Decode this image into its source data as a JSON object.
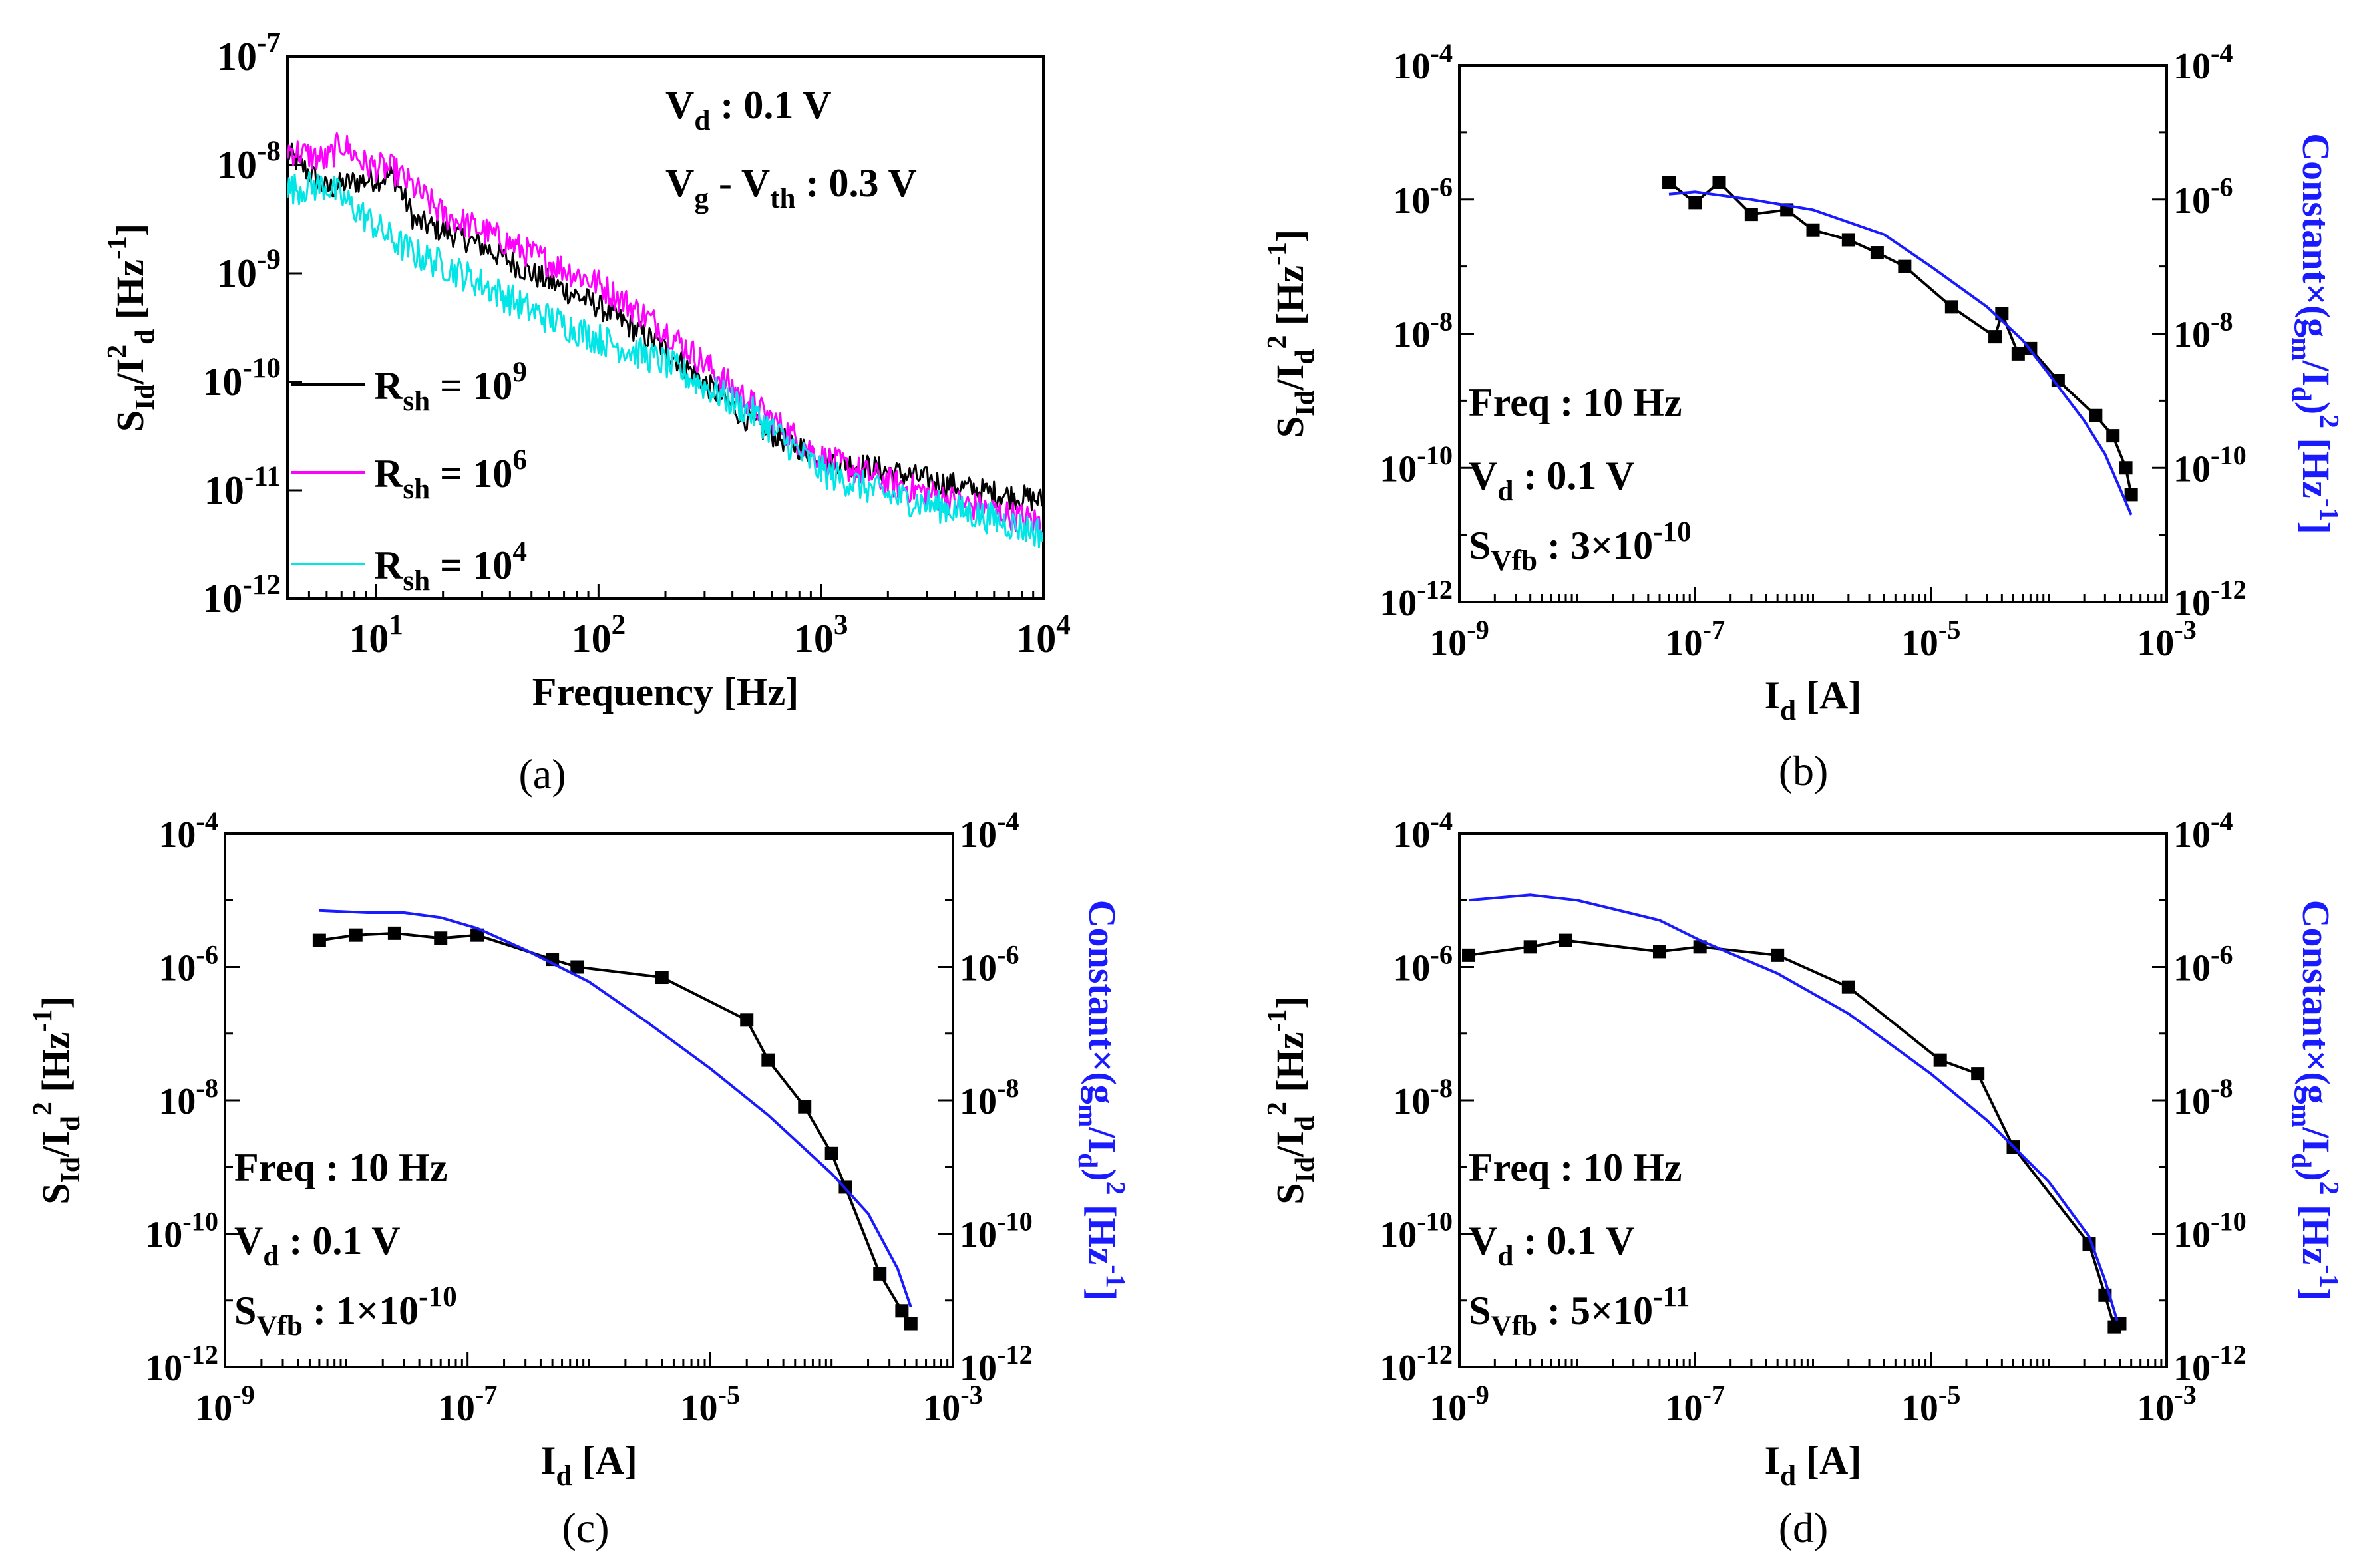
{
  "figure_captions": [
    "(a)",
    "(b)",
    "(c)",
    "(d)"
  ],
  "colors": {
    "black_series": "#000000",
    "magenta_series": "#ff00ff",
    "cyan_series": "#00e5e5",
    "blue_axis": "#1a1aff"
  },
  "chart_data": [
    {
      "id": "a",
      "type": "line",
      "caption": "(a)",
      "xscale": "log",
      "yscale": "log",
      "xlim": [
        4,
        10000
      ],
      "ylim": [
        1e-12,
        1e-07
      ],
      "xticks": [
        {
          "v": 10,
          "base": "10",
          "exp": "1"
        },
        {
          "v": 100,
          "base": "10",
          "exp": "2"
        },
        {
          "v": 1000,
          "base": "10",
          "exp": "3"
        },
        {
          "v": 10000,
          "base": "10",
          "exp": "4"
        }
      ],
      "yticks": [
        {
          "v": 1e-07,
          "base": "10",
          "exp": "-7"
        },
        {
          "v": 1e-08,
          "base": "10",
          "exp": "-8"
        },
        {
          "v": 1e-09,
          "base": "10",
          "exp": "-9"
        },
        {
          "v": 1e-10,
          "base": "10",
          "exp": "-10"
        },
        {
          "v": 1e-11,
          "base": "10",
          "exp": "-11"
        },
        {
          "v": 1e-12,
          "base": "10",
          "exp": "-12"
        }
      ],
      "xlabel": {
        "main": "Frequency [Hz]"
      },
      "ylabel": {
        "S": "S",
        "sub1": "Id",
        "mid": "/I",
        "sup2": "2",
        "sub2": "d",
        "tail": " [Hz",
        "sup3": "-1",
        "end": "]"
      },
      "annotations": [
        {
          "main": "V",
          "sub": "d",
          "rest": " : 0.1 V"
        },
        {
          "main": "V",
          "sub": "g",
          "rest": " - V",
          "sub2": "th",
          "rest2": " : 0.3 V"
        }
      ],
      "legend": {
        "position": "bottom-left",
        "entries": [
          {
            "main": "R",
            "sub": "sh",
            "eq": " = 10",
            "sup": "9",
            "color": "#000000"
          },
          {
            "main": "R",
            "sub": "sh",
            "eq": " = 10",
            "sup": "6",
            "color": "#ff00ff"
          },
          {
            "main": "R",
            "sub": "sh",
            "eq": " = 10",
            "sup": "4",
            "color": "#00e5e5"
          }
        ]
      },
      "series": [
        {
          "name": "Rsh = 10^9",
          "color": "#000000",
          "x": [
            4,
            6,
            8,
            12,
            15,
            20,
            30,
            50,
            100,
            200,
            500,
            1000,
            2000,
            5000,
            10000
          ],
          "y": [
            1.3e-08,
            6e-09,
            7e-09,
            8e-09,
            3e-09,
            2.5e-09,
            1.8e-09,
            1e-09,
            5e-10,
            2e-10,
            4e-11,
            2e-11,
            1.5e-11,
            1e-11,
            8e-12
          ],
          "noise": 0.12
        },
        {
          "name": "Rsh = 10^6",
          "color": "#ff00ff",
          "x": [
            4,
            6,
            7,
            9,
            12,
            15,
            20,
            30,
            50,
            100,
            200,
            500,
            1000,
            2000,
            5000,
            10000
          ],
          "y": [
            1.4e-08,
            1.1e-08,
            1.6e-08,
            1e-08,
            9e-09,
            6e-09,
            3.5e-09,
            2.5e-09,
            1.5e-09,
            8e-10,
            3e-10,
            6e-11,
            2e-11,
            1.2e-11,
            7e-12,
            5e-12
          ],
          "noise": 0.14
        },
        {
          "name": "Rsh = 10^4",
          "color": "#00e5e5",
          "x": [
            4,
            6,
            8,
            12,
            15,
            20,
            30,
            50,
            100,
            200,
            500,
            1000,
            2000,
            5000,
            10000
          ],
          "y": [
            6e-09,
            6.5e-09,
            4e-09,
            2e-09,
            1.5e-09,
            1.2e-09,
            8e-10,
            4.5e-10,
            2.5e-10,
            1.5e-10,
            5e-11,
            1.5e-11,
            9e-12,
            6e-12,
            4e-12
          ],
          "noise": 0.15
        }
      ]
    },
    {
      "id": "b",
      "type": "line",
      "caption": "(b)",
      "xscale": "log",
      "yscale": "log",
      "xlim": [
        1e-09,
        0.001
      ],
      "ylim": [
        1e-12,
        0.0001
      ],
      "xticks": [
        {
          "v": 1e-09,
          "base": "10",
          "exp": "-9"
        },
        {
          "v": 1e-07,
          "base": "10",
          "exp": "-7"
        },
        {
          "v": 1e-05,
          "base": "10",
          "exp": "-5"
        },
        {
          "v": 0.001,
          "base": "10",
          "exp": "-3"
        }
      ],
      "yticks": [
        {
          "v": 0.0001,
          "base": "10",
          "exp": "-4"
        },
        {
          "v": 1e-06,
          "base": "10",
          "exp": "-6"
        },
        {
          "v": 1e-08,
          "base": "10",
          "exp": "-8"
        },
        {
          "v": 1e-10,
          "base": "10",
          "exp": "-10"
        },
        {
          "v": 1e-12,
          "base": "10",
          "exp": "-12"
        }
      ],
      "xlabel": {
        "main": "I",
        "sub": "d",
        "rest": " [A]"
      },
      "ylabel": {
        "S": "S",
        "sub1": "Id",
        "mid": "/I",
        "sub2": "d",
        "sup2": "2",
        "tail": " [Hz",
        "sup3": "-1",
        "end": "]"
      },
      "ylabel_right": {
        "pre": "Constant×(g",
        "sub1": "m",
        "mid": "/I",
        "sub2": "d",
        "close": ")",
        "sup2": "2",
        "tail": " [Hz",
        "sup3": "-1",
        "end": "]"
      },
      "annotations": [
        {
          "main": "Freq : 10 Hz"
        },
        {
          "main": "V",
          "sub": "d",
          "rest": " : 0.1 V"
        },
        {
          "main": "S",
          "sub": "Vfb",
          "rest": " :  3×10",
          "sup": "-10"
        }
      ],
      "series": [
        {
          "name": "SId/Id^2 measured",
          "color": "#000000",
          "markers": "square",
          "x": [
            6e-08,
            1e-07,
            1.6e-07,
            3e-07,
            6e-07,
            1e-06,
            2e-06,
            3.5e-06,
            6e-06,
            1.5e-05,
            3.5e-05,
            4e-05,
            5.5e-05,
            7e-05,
            0.00012,
            0.00025,
            0.00035,
            0.00045,
            0.0005
          ],
          "y": [
            1.8e-06,
            9e-07,
            1.8e-06,
            6e-07,
            7e-07,
            3.5e-07,
            2.5e-07,
            1.6e-07,
            1e-07,
            2.5e-08,
            9e-09,
            2e-08,
            5e-09,
            6e-09,
            2e-09,
            6e-10,
            3e-10,
            1e-10,
            4e-11
          ]
        },
        {
          "name": "Constant x (gm/Id)^2",
          "color": "#1a1aff",
          "x": [
            6e-08,
            1e-07,
            3e-07,
            1e-06,
            4e-06,
            1e-05,
            3e-05,
            6e-05,
            0.0001,
            0.0002,
            0.0003,
            0.0004,
            0.0005
          ],
          "y": [
            1.2e-06,
            1.3e-06,
            1e-06,
            7e-07,
            3e-07,
            1e-07,
            2.5e-08,
            8e-09,
            2.5e-09,
            5e-10,
            1.6e-10,
            5e-11,
            2e-11
          ]
        }
      ]
    },
    {
      "id": "c",
      "type": "line",
      "caption": "(c)",
      "xscale": "log",
      "yscale": "log",
      "xlim": [
        1e-09,
        0.001
      ],
      "ylim": [
        1e-12,
        0.0001
      ],
      "xticks": [
        {
          "v": 1e-09,
          "base": "10",
          "exp": "-9"
        },
        {
          "v": 1e-07,
          "base": "10",
          "exp": "-7"
        },
        {
          "v": 1e-05,
          "base": "10",
          "exp": "-5"
        },
        {
          "v": 0.001,
          "base": "10",
          "exp": "-3"
        }
      ],
      "yticks": [
        {
          "v": 0.0001,
          "base": "10",
          "exp": "-4"
        },
        {
          "v": 1e-06,
          "base": "10",
          "exp": "-6"
        },
        {
          "v": 1e-08,
          "base": "10",
          "exp": "-8"
        },
        {
          "v": 1e-10,
          "base": "10",
          "exp": "-10"
        },
        {
          "v": 1e-12,
          "base": "10",
          "exp": "-12"
        }
      ],
      "xlabel": {
        "main": "I",
        "sub": "d",
        "rest": " [A]"
      },
      "ylabel": {
        "S": "S",
        "sub1": "Id",
        "mid": "/I",
        "sub2": "d",
        "sup2": "2",
        "tail": " [Hz",
        "sup3": "-1",
        "end": "]"
      },
      "ylabel_right": {
        "pre": "Constant×(g",
        "sub1": "m",
        "mid": "/I",
        "sub2": "d",
        "close": ")",
        "sup2": "2",
        "tail": " [Hz",
        "sup3": "-1",
        "end": "]"
      },
      "annotations": [
        {
          "main": "Freq : 10 Hz"
        },
        {
          "main": "V",
          "sub": "d",
          "rest": " : 0.1 V"
        },
        {
          "main": "S",
          "sub": "Vfb",
          "rest": " :  1×10",
          "sup": "-10"
        }
      ],
      "series": [
        {
          "name": "SId/Id^2 measured",
          "color": "#000000",
          "markers": "square",
          "x": [
            6e-09,
            1.2e-08,
            2.5e-08,
            6e-08,
            1.2e-07,
            5e-07,
            8e-07,
            4e-06,
            2e-05,
            3e-05,
            6e-05,
            0.0001,
            0.00013,
            0.00025,
            0.00038,
            0.00045
          ],
          "y": [
            2.5e-06,
            3e-06,
            3.2e-06,
            2.7e-06,
            3e-06,
            1.3e-06,
            1e-06,
            7e-07,
            1.6e-07,
            4e-08,
            8e-09,
            1.6e-09,
            5e-10,
            2.5e-11,
            7e-12,
            4.5e-12
          ]
        },
        {
          "name": "Constant x (gm/Id)^2",
          "color": "#1a1aff",
          "x": [
            6e-09,
            1.5e-08,
            3e-08,
            6e-08,
            1.2e-07,
            3e-07,
            1e-06,
            3e-06,
            1e-05,
            3e-05,
            0.0001,
            0.0002,
            0.00035,
            0.00045
          ],
          "y": [
            7e-06,
            6.5e-06,
            6.5e-06,
            5.5e-06,
            3.8e-06,
            1.8e-06,
            6e-07,
            1.5e-07,
            3e-08,
            6e-09,
            8e-10,
            2e-10,
            3e-11,
            8e-12
          ]
        }
      ]
    },
    {
      "id": "d",
      "type": "line",
      "caption": "(d)",
      "xscale": "log",
      "yscale": "log",
      "xlim": [
        1e-09,
        0.001
      ],
      "ylim": [
        1e-12,
        0.0001
      ],
      "xticks": [
        {
          "v": 1e-09,
          "base": "10",
          "exp": "-9"
        },
        {
          "v": 1e-07,
          "base": "10",
          "exp": "-7"
        },
        {
          "v": 1e-05,
          "base": "10",
          "exp": "-5"
        },
        {
          "v": 0.001,
          "base": "10",
          "exp": "-3"
        }
      ],
      "yticks": [
        {
          "v": 0.0001,
          "base": "10",
          "exp": "-4"
        },
        {
          "v": 1e-06,
          "base": "10",
          "exp": "-6"
        },
        {
          "v": 1e-08,
          "base": "10",
          "exp": "-8"
        },
        {
          "v": 1e-10,
          "base": "10",
          "exp": "-10"
        },
        {
          "v": 1e-12,
          "base": "10",
          "exp": "-12"
        }
      ],
      "xlabel": {
        "main": "I",
        "sub": "d",
        "rest": " [A]"
      },
      "ylabel": {
        "S": "S",
        "sub1": "Id",
        "mid": "/I",
        "sub2": "d",
        "sup2": "2",
        "tail": " [Hz",
        "sup3": "-1",
        "end": "]"
      },
      "ylabel_right": {
        "pre": "Constant×(g",
        "sub1": "m",
        "mid": "/I",
        "sub2": "d",
        "close": ")",
        "sup2": "2",
        "tail": " [Hz",
        "sup3": "-1",
        "end": "]"
      },
      "annotations": [
        {
          "main": "Freq : 10 Hz"
        },
        {
          "main": "V",
          "sub": "d",
          "rest": " : 0.1 V"
        },
        {
          "main": "S",
          "sub": "Vfb",
          "rest": " :  5×10",
          "sup": "-11"
        }
      ],
      "series": [
        {
          "name": "SId/Id^2 measured",
          "color": "#000000",
          "markers": "square",
          "x": [
            1.2e-09,
            4e-09,
            8e-09,
            5e-08,
            1.1e-07,
            5e-07,
            2e-06,
            1.2e-05,
            2.5e-05,
            5e-05,
            0.00022,
            0.0003,
            0.00036,
            0.0004
          ],
          "y": [
            1.5e-06,
            2e-06,
            2.5e-06,
            1.7e-06,
            2e-06,
            1.5e-06,
            5e-07,
            4e-08,
            2.5e-08,
            2e-09,
            7e-11,
            1.2e-11,
            4e-12,
            4.5e-12
          ]
        },
        {
          "name": "Constant x (gm/Id)^2",
          "color": "#1a1aff",
          "x": [
            1.2e-09,
            4e-09,
            1e-08,
            5e-08,
            1.1e-07,
            5e-07,
            2e-06,
            1e-05,
            3e-05,
            0.0001,
            0.00022,
            0.0003,
            0.00038
          ],
          "y": [
            1e-05,
            1.2e-05,
            1e-05,
            5e-06,
            2.5e-06,
            8e-07,
            2e-07,
            2.5e-08,
            5e-09,
            6e-10,
            9e-11,
            2e-11,
            5e-12
          ]
        }
      ]
    }
  ]
}
